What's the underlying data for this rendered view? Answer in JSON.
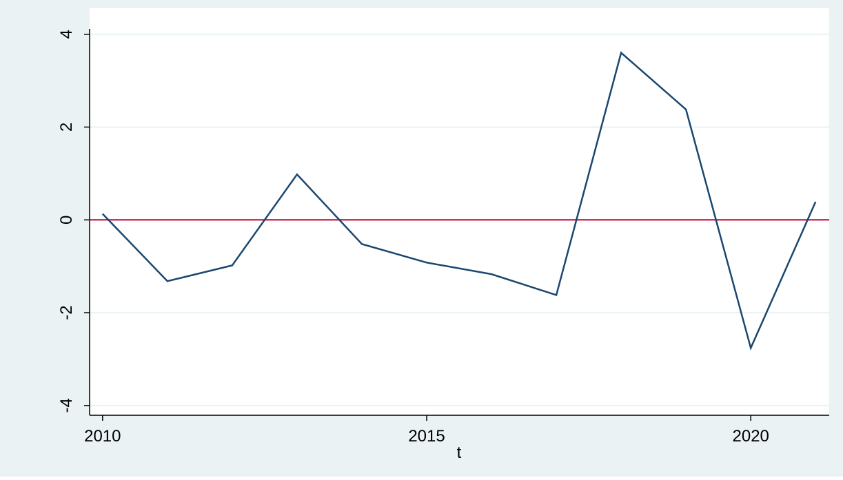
{
  "chart_data": {
    "type": "line",
    "xlabel": "t",
    "x": [
      2010,
      2011,
      2012,
      2013,
      2014,
      2015,
      2016,
      2017,
      2018,
      2019,
      2020,
      2021
    ],
    "series": [
      {
        "color": "#1a476f",
        "values": [
          0.13,
          -1.32,
          -0.98,
          0.98,
          -0.52,
          -0.92,
          -1.17,
          -1.62,
          3.6,
          2.38,
          -2.76,
          0.39
        ]
      }
    ],
    "xlim": [
      2009.8,
      2021.21
    ],
    "xticks": [
      2010,
      2015,
      2020
    ],
    "ylim": [
      -4.21,
      4.56
    ],
    "yticks": [
      -4,
      -2,
      0,
      2,
      4
    ],
    "grid": true,
    "refline": {
      "value": 0,
      "color": "#c10534"
    }
  }
}
